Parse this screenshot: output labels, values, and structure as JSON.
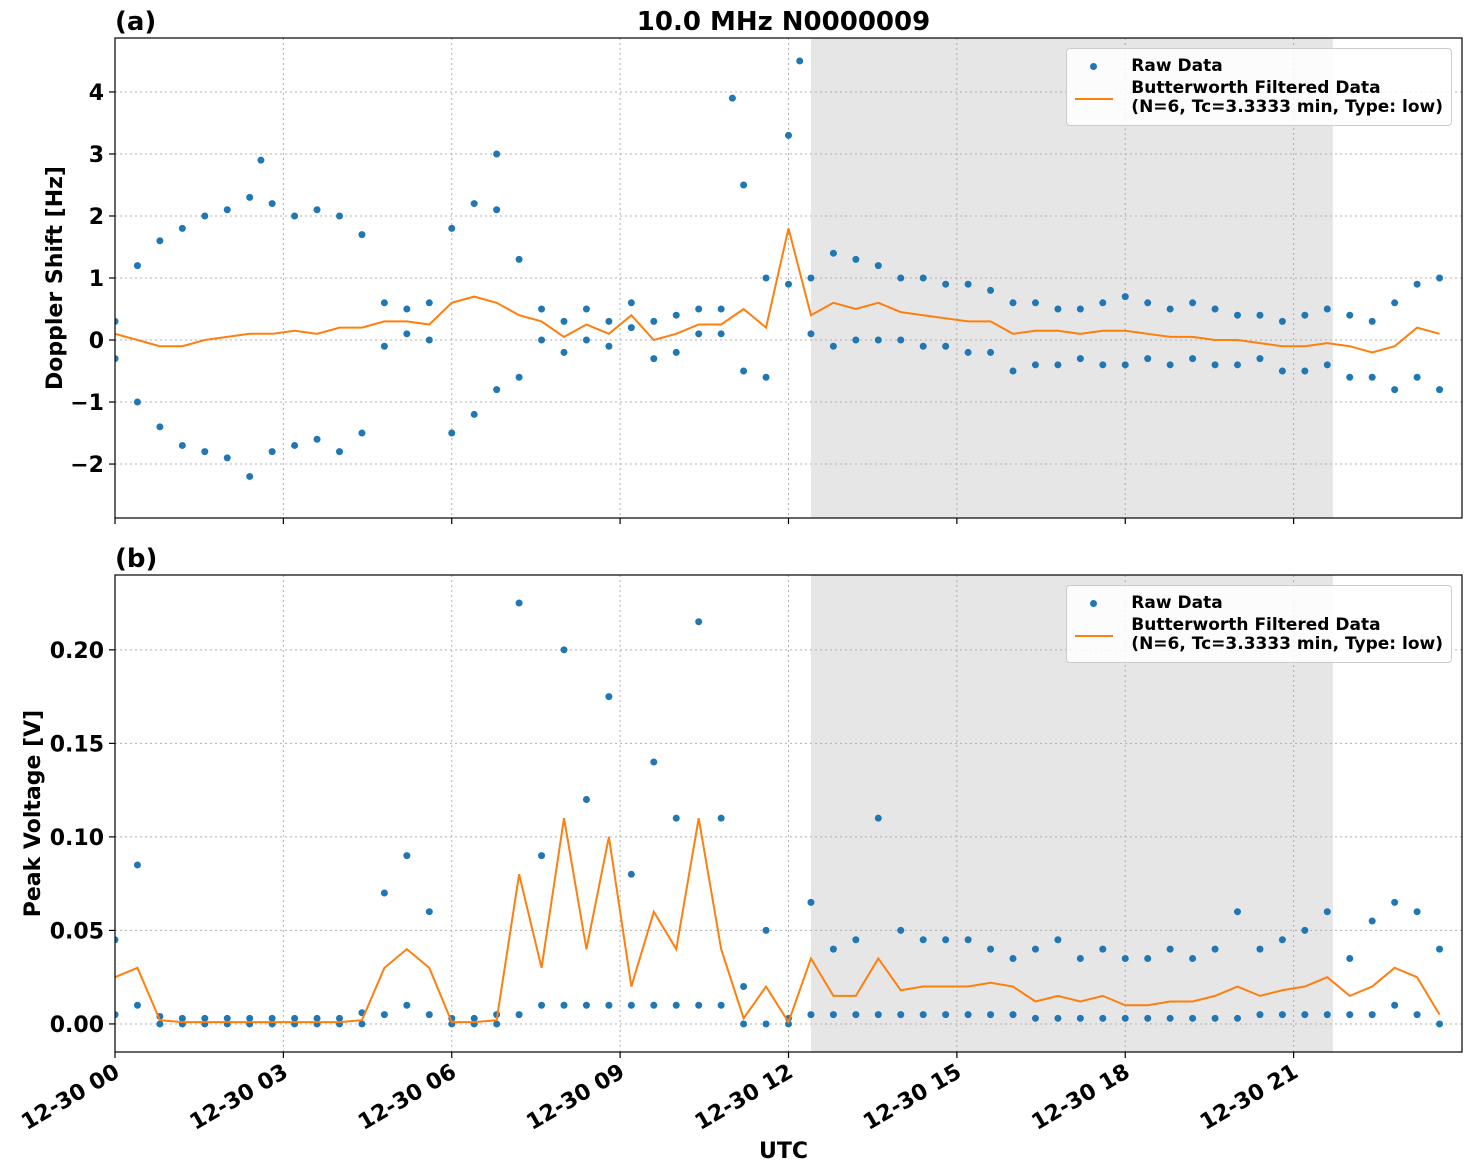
{
  "chart_data": [
    {
      "type": "scatter",
      "panel_label": "(a)",
      "title": "10.0 MHz N0000009",
      "ylabel": "Doppler Shift [Hz]",
      "xlim": [
        0,
        24
      ],
      "ylim": [
        -2.87,
        4.87
      ],
      "xticks": [
        0,
        3,
        6,
        9,
        12,
        15,
        18,
        21
      ],
      "yticks": [
        {
          "value": -2,
          "label": "−2"
        },
        {
          "value": -1,
          "label": "−1"
        },
        0,
        1,
        2,
        3,
        4
      ],
      "grid": true,
      "shaded_span": [
        12.4,
        21.7
      ],
      "legend": "upper right",
      "series": [
        {
          "name": "Raw Data",
          "type": "scatter",
          "color": "#1f77b4",
          "x": [
            0,
            0,
            0.4,
            0.4,
            0.8,
            0.8,
            1.2,
            1.2,
            1.6,
            1.6,
            2,
            2,
            2.4,
            2.4,
            2.8,
            2.8,
            3.2,
            3.2,
            3.6,
            3.6,
            4,
            4,
            4.4,
            4.4,
            4.8,
            4.8,
            5.2,
            5.2,
            5.6,
            5.6,
            6,
            6,
            6.4,
            6.4,
            6.8,
            6.8,
            7.2,
            7.2,
            7.6,
            7.6,
            8,
            8,
            8.4,
            8.4,
            8.8,
            8.8,
            9.2,
            9.2,
            9.6,
            9.6,
            10,
            10,
            10.4,
            10.4,
            10.8,
            10.8,
            11.2,
            11.2,
            11.6,
            11.6,
            12,
            12,
            12.4,
            12.4,
            12.8,
            12.8,
            13.2,
            13.2,
            13.6,
            13.6,
            14,
            14,
            14.4,
            14.4,
            14.8,
            14.8,
            15.2,
            15.2,
            15.6,
            15.6,
            16,
            16,
            16.4,
            16.4,
            16.8,
            16.8,
            17.2,
            17.2,
            17.6,
            17.6,
            18,
            18,
            18.4,
            18.4,
            18.8,
            18.8,
            19.2,
            19.2,
            19.6,
            19.6,
            20,
            20,
            20.4,
            20.4,
            20.8,
            20.8,
            21.2,
            21.2,
            21.6,
            21.6,
            22,
            22,
            22.4,
            22.4,
            22.8,
            22.8,
            23.2,
            23.2,
            23.6,
            23.6,
            2.6,
            6.8,
            11.0,
            12.2
          ],
          "values": [
            0.3,
            -0.3,
            1.2,
            -1.0,
            1.6,
            -1.4,
            1.8,
            -1.7,
            2.0,
            -1.8,
            2.1,
            -1.9,
            2.3,
            -2.2,
            2.2,
            -1.8,
            2.0,
            -1.7,
            2.1,
            -1.6,
            2.0,
            -1.8,
            1.7,
            -1.5,
            0.6,
            -0.1,
            0.5,
            0.1,
            0.6,
            0.0,
            1.8,
            -1.5,
            2.2,
            -1.2,
            2.1,
            -0.8,
            1.3,
            -0.6,
            0.5,
            0.0,
            0.3,
            -0.2,
            0.5,
            0.0,
            0.3,
            -0.1,
            0.6,
            0.2,
            0.3,
            -0.3,
            0.4,
            -0.2,
            0.5,
            0.1,
            0.5,
            0.1,
            2.5,
            -0.5,
            1.0,
            -0.6,
            3.3,
            0.9,
            1.0,
            0.1,
            1.4,
            -0.1,
            1.3,
            0.0,
            1.2,
            0.0,
            1.0,
            0.0,
            1.0,
            -0.1,
            0.9,
            -0.1,
            0.9,
            -0.2,
            0.8,
            -0.2,
            0.6,
            -0.5,
            0.6,
            -0.4,
            0.5,
            -0.4,
            0.5,
            -0.3,
            0.6,
            -0.4,
            0.7,
            -0.4,
            0.6,
            -0.3,
            0.5,
            -0.4,
            0.6,
            -0.3,
            0.5,
            -0.4,
            0.4,
            -0.4,
            0.4,
            -0.3,
            0.3,
            -0.5,
            0.4,
            -0.5,
            0.5,
            -0.4,
            0.4,
            -0.6,
            0.3,
            -0.6,
            0.6,
            -0.8,
            0.9,
            -0.6,
            1.0,
            -0.8,
            2.9,
            3.0,
            3.9,
            4.5
          ]
        },
        {
          "name": "Butterworth Filtered Data\n(N=6, Tc=3.3333 min, Type: low)",
          "type": "line",
          "color": "#ff7f0e",
          "x": [
            0,
            0.4,
            0.8,
            1.2,
            1.6,
            2,
            2.4,
            2.8,
            3.2,
            3.6,
            4,
            4.4,
            4.8,
            5.2,
            5.6,
            6,
            6.4,
            6.8,
            7.2,
            7.6,
            8,
            8.4,
            8.8,
            9.2,
            9.6,
            10,
            10.4,
            10.8,
            11.2,
            11.6,
            12,
            12.4,
            12.8,
            13.2,
            13.6,
            14,
            14.4,
            14.8,
            15.2,
            15.6,
            16,
            16.4,
            16.8,
            17.2,
            17.6,
            18,
            18.4,
            18.8,
            19.2,
            19.6,
            20,
            20.4,
            20.8,
            21.2,
            21.6,
            22,
            22.4,
            22.8,
            23.2,
            23.6
          ],
          "values": [
            0.1,
            0.0,
            -0.1,
            -0.1,
            0.0,
            0.05,
            0.1,
            0.1,
            0.15,
            0.1,
            0.2,
            0.2,
            0.3,
            0.3,
            0.25,
            0.6,
            0.7,
            0.6,
            0.4,
            0.3,
            0.05,
            0.25,
            0.1,
            0.4,
            0.0,
            0.1,
            0.25,
            0.25,
            0.5,
            0.2,
            1.8,
            0.4,
            0.6,
            0.5,
            0.6,
            0.45,
            0.4,
            0.35,
            0.3,
            0.3,
            0.1,
            0.15,
            0.15,
            0.1,
            0.15,
            0.15,
            0.1,
            0.05,
            0.05,
            0.0,
            0.0,
            -0.05,
            -0.1,
            -0.1,
            -0.05,
            -0.1,
            -0.2,
            -0.1,
            0.2,
            0.1
          ]
        }
      ]
    },
    {
      "type": "scatter",
      "panel_label": "(b)",
      "ylabel": "Peak Voltage [V]",
      "xlabel": "UTC",
      "xlim": [
        0,
        24
      ],
      "ylim": [
        -0.015,
        0.24
      ],
      "xticks": [
        {
          "value": 0,
          "label": "12-30 00"
        },
        {
          "value": 3,
          "label": "12-30 03"
        },
        {
          "value": 6,
          "label": "12-30 06"
        },
        {
          "value": 9,
          "label": "12-30 09"
        },
        {
          "value": 12,
          "label": "12-30 12"
        },
        {
          "value": 15,
          "label": "12-30 15"
        },
        {
          "value": 18,
          "label": "12-30 18"
        },
        {
          "value": 21,
          "label": "12-30 21"
        }
      ],
      "yticks": [
        {
          "value": 0,
          "label": "0.00"
        },
        {
          "value": 0.05,
          "label": "0.05"
        },
        {
          "value": 0.1,
          "label": "0.10"
        },
        {
          "value": 0.15,
          "label": "0.15"
        },
        {
          "value": 0.2,
          "label": "0.20"
        }
      ],
      "grid": true,
      "shaded_span": [
        12.4,
        21.7
      ],
      "legend": "upper right",
      "series": [
        {
          "name": "Raw Data",
          "type": "scatter",
          "color": "#1f77b4",
          "x": [
            0,
            0,
            0.4,
            0.4,
            0.8,
            0.8,
            1.2,
            1.2,
            1.6,
            1.6,
            2,
            2,
            2.4,
            2.4,
            2.8,
            2.8,
            3.2,
            3.2,
            3.6,
            3.6,
            4,
            4,
            4.4,
            4.4,
            4.8,
            4.8,
            5.2,
            5.2,
            5.6,
            5.6,
            6,
            6,
            6.4,
            6.4,
            6.8,
            6.8,
            7.2,
            7.2,
            7.6,
            7.6,
            8,
            8,
            8.4,
            8.4,
            8.8,
            8.8,
            9.2,
            9.2,
            9.6,
            9.6,
            10,
            10,
            10.4,
            10.4,
            10.8,
            10.8,
            11.2,
            11.2,
            11.6,
            11.6,
            12,
            12,
            12.4,
            12.4,
            12.8,
            12.8,
            13.2,
            13.2,
            13.6,
            13.6,
            14,
            14,
            14.4,
            14.4,
            14.8,
            14.8,
            15.2,
            15.2,
            15.6,
            15.6,
            16,
            16,
            16.4,
            16.4,
            16.8,
            16.8,
            17.2,
            17.2,
            17.6,
            17.6,
            18,
            18,
            18.4,
            18.4,
            18.8,
            18.8,
            19.2,
            19.2,
            19.6,
            19.6,
            20,
            20,
            20.4,
            20.4,
            20.8,
            20.8,
            21.2,
            21.2,
            21.6,
            21.6,
            22,
            22,
            22.4,
            22.4,
            22.8,
            22.8,
            23.2,
            23.2,
            23.6,
            23.6
          ],
          "values": [
            0.045,
            0.005,
            0.085,
            0.01,
            0.004,
            0,
            0.003,
            0,
            0.003,
            0,
            0.003,
            0,
            0.003,
            0,
            0.003,
            0,
            0.003,
            0,
            0.003,
            0,
            0.003,
            0,
            0.006,
            0,
            0.07,
            0.005,
            0.09,
            0.01,
            0.06,
            0.005,
            0.003,
            0,
            0.003,
            0,
            0.005,
            0,
            0.225,
            0.005,
            0.09,
            0.01,
            0.2,
            0.01,
            0.12,
            0.01,
            0.175,
            0.01,
            0.08,
            0.01,
            0.14,
            0.01,
            0.11,
            0.01,
            0.215,
            0.01,
            0.11,
            0.01,
            0.02,
            0,
            0.05,
            0,
            0.003,
            0,
            0.065,
            0.005,
            0.04,
            0.005,
            0.045,
            0.005,
            0.11,
            0.005,
            0.05,
            0.005,
            0.045,
            0.005,
            0.045,
            0.005,
            0.045,
            0.005,
            0.04,
            0.005,
            0.035,
            0.005,
            0.04,
            0.003,
            0.045,
            0.003,
            0.035,
            0.003,
            0.04,
            0.003,
            0.035,
            0.003,
            0.035,
            0.003,
            0.04,
            0.003,
            0.035,
            0.003,
            0.04,
            0.003,
            0.06,
            0.003,
            0.04,
            0.005,
            0.045,
            0.005,
            0.05,
            0.005,
            0.06,
            0.005,
            0.035,
            0.005,
            0.055,
            0.005,
            0.065,
            0.01,
            0.06,
            0.005,
            0.04,
            0
          ]
        },
        {
          "name": "Butterworth Filtered Data\n(N=6, Tc=3.3333 min, Type: low)",
          "type": "line",
          "color": "#ff7f0e",
          "x": [
            0,
            0.4,
            0.8,
            1.2,
            1.6,
            2,
            2.4,
            2.8,
            3.2,
            3.6,
            4,
            4.4,
            4.8,
            5.2,
            5.6,
            6,
            6.4,
            6.8,
            7.2,
            7.6,
            8,
            8.4,
            8.8,
            9.2,
            9.6,
            10,
            10.4,
            10.8,
            11.2,
            11.6,
            12,
            12.4,
            12.8,
            13.2,
            13.6,
            14,
            14.4,
            14.8,
            15.2,
            15.6,
            16,
            16.4,
            16.8,
            17.2,
            17.6,
            18,
            18.4,
            18.8,
            19.2,
            19.6,
            20,
            20.4,
            20.8,
            21.2,
            21.6,
            22,
            22.4,
            22.8,
            23.2,
            23.6
          ],
          "values": [
            0.025,
            0.03,
            0.002,
            0.001,
            0.001,
            0.001,
            0.001,
            0.001,
            0.001,
            0.001,
            0.001,
            0.002,
            0.03,
            0.04,
            0.03,
            0.001,
            0.001,
            0.002,
            0.08,
            0.03,
            0.11,
            0.04,
            0.1,
            0.02,
            0.06,
            0.04,
            0.11,
            0.04,
            0.003,
            0.02,
            0.001,
            0.035,
            0.015,
            0.015,
            0.035,
            0.018,
            0.02,
            0.02,
            0.02,
            0.022,
            0.02,
            0.012,
            0.015,
            0.012,
            0.015,
            0.01,
            0.01,
            0.012,
            0.012,
            0.015,
            0.02,
            0.015,
            0.018,
            0.02,
            0.025,
            0.015,
            0.02,
            0.03,
            0.025,
            0.005
          ]
        }
      ]
    }
  ]
}
